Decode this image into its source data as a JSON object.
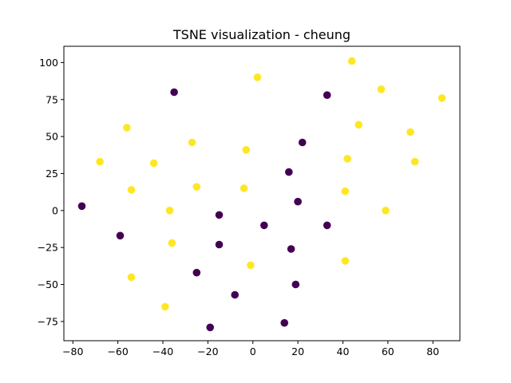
{
  "chart_data": {
    "type": "scatter",
    "title": "TSNE visualization - cheung",
    "xlabel": "",
    "ylabel": "",
    "xlim": [
      -84,
      92
    ],
    "ylim": [
      -88,
      111
    ],
    "xticks": [
      -80,
      -60,
      -40,
      -20,
      0,
      20,
      40,
      60,
      80
    ],
    "yticks": [
      -75,
      -50,
      -25,
      0,
      25,
      50,
      75,
      100
    ],
    "grid": false,
    "legend": "none",
    "colors": {
      "class_0": "#440154",
      "class_1": "#fde725"
    },
    "series": [
      {
        "class": 0,
        "color": "#440154",
        "points": [
          [
            -35,
            80
          ],
          [
            33,
            78
          ],
          [
            22,
            46
          ],
          [
            16,
            26
          ],
          [
            20,
            6
          ],
          [
            -76,
            3
          ],
          [
            -15,
            -3
          ],
          [
            5,
            -10
          ],
          [
            33,
            -10
          ],
          [
            -59,
            -17
          ],
          [
            -15,
            -23
          ],
          [
            17,
            -26
          ],
          [
            -25,
            -42
          ],
          [
            19,
            -50
          ],
          [
            -8,
            -57
          ],
          [
            14,
            -76
          ],
          [
            -19,
            -79
          ]
        ]
      },
      {
        "class": 1,
        "color": "#fde725",
        "points": [
          [
            44,
            101
          ],
          [
            2,
            90
          ],
          [
            57,
            82
          ],
          [
            84,
            76
          ],
          [
            47,
            58
          ],
          [
            -56,
            56
          ],
          [
            70,
            53
          ],
          [
            -27,
            46
          ],
          [
            -3,
            41
          ],
          [
            -68,
            33
          ],
          [
            42,
            35
          ],
          [
            -44,
            32
          ],
          [
            72,
            33
          ],
          [
            -25,
            16
          ],
          [
            -4,
            15
          ],
          [
            -54,
            14
          ],
          [
            41,
            13
          ],
          [
            -37,
            0
          ],
          [
            59,
            0
          ],
          [
            -36,
            -22
          ],
          [
            -1,
            -37
          ],
          [
            41,
            -34
          ],
          [
            -54,
            -45
          ],
          [
            -39,
            -65
          ]
        ]
      }
    ]
  }
}
